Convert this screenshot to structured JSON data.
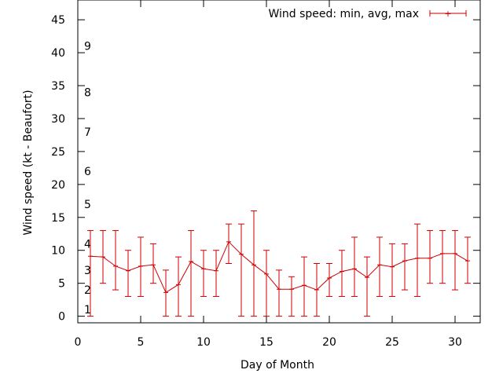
{
  "chart_data": {
    "type": "line",
    "title": "",
    "xlabel": "Day of Month",
    "ylabel": "Wind speed (kt - Beaufort)",
    "xlim": [
      0,
      32
    ],
    "ylim": [
      -1,
      48
    ],
    "x_ticks": [
      0,
      5,
      10,
      15,
      20,
      25,
      30
    ],
    "y_ticks": [
      0,
      5,
      10,
      15,
      20,
      25,
      30,
      35,
      40,
      45
    ],
    "grid": false,
    "legend_position": "top-right",
    "beaufort_labels": [
      {
        "label": "1",
        "value": 1
      },
      {
        "label": "2",
        "value": 4
      },
      {
        "label": "3",
        "value": 7
      },
      {
        "label": "4",
        "value": 11
      },
      {
        "label": "5",
        "value": 17
      },
      {
        "label": "6",
        "value": 22
      },
      {
        "label": "7",
        "value": 28
      },
      {
        "label": "8",
        "value": 34
      },
      {
        "label": "9",
        "value": 41
      }
    ],
    "series": [
      {
        "name": "Wind speed: min, avg, max",
        "color": "#cc0000",
        "x": [
          1,
          2,
          3,
          4,
          5,
          6,
          7,
          8,
          9,
          10,
          11,
          12,
          13,
          14,
          15,
          16,
          17,
          18,
          19,
          20,
          21,
          22,
          23,
          24,
          25,
          26,
          27,
          28,
          29,
          30,
          31
        ],
        "avg": [
          9.1,
          9.0,
          7.6,
          6.9,
          7.6,
          7.8,
          3.6,
          4.8,
          8.3,
          7.2,
          6.9,
          11.3,
          9.4,
          7.8,
          6.4,
          4.1,
          4.1,
          4.7,
          4.0,
          5.8,
          6.8,
          7.2,
          5.9,
          7.8,
          7.5,
          8.4,
          8.8,
          8.8,
          9.5,
          9.5,
          8.4
        ],
        "min": [
          0,
          5,
          4,
          3,
          3,
          5,
          0,
          0,
          0,
          3,
          3,
          8,
          0,
          0,
          0,
          0,
          0,
          0,
          0,
          3,
          3,
          3,
          0,
          3,
          3,
          4,
          3,
          5,
          5,
          4,
          5
        ],
        "max": [
          13,
          13,
          13,
          10,
          12,
          11,
          7,
          9,
          13,
          10,
          10,
          14,
          14,
          16,
          10,
          7,
          6,
          9,
          8,
          8,
          10,
          12,
          9,
          12,
          11,
          11,
          14,
          13,
          13,
          13,
          12
        ]
      }
    ]
  }
}
